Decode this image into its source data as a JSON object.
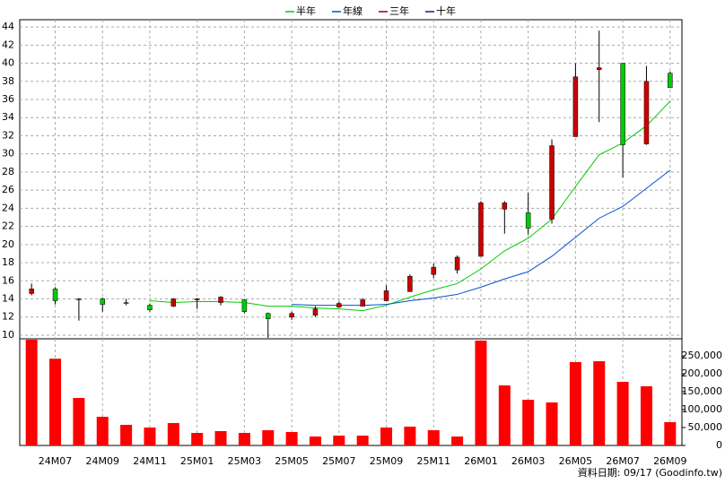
{
  "chart_data": [
    {
      "type": "candlestick",
      "open": [
        14.6,
        15.1,
        14.0,
        14.0,
        13.6,
        13.3,
        13.2,
        13.9,
        13.6,
        13.9,
        12.4,
        12.0,
        12.2,
        13.1,
        13.2,
        13.8,
        14.8,
        16.7,
        17.2,
        18.7,
        23.9,
        23.5,
        22.8,
        31.9,
        39.3,
        40.0,
        31.1,
        38.9
      ],
      "high": [
        15.7,
        15.3,
        14.1,
        14.15,
        14.0,
        13.5,
        14.1,
        14.1,
        14.3,
        14.0,
        12.5,
        12.6,
        13.2,
        13.7,
        14.1,
        15.5,
        16.7,
        17.9,
        18.8,
        24.8,
        24.8,
        25.7,
        31.6,
        40.0,
        43.6,
        40.0,
        39.7,
        39.1
      ],
      "low": [
        14.4,
        13.4,
        11.6,
        12.6,
        13.3,
        12.6,
        13.1,
        12.9,
        13.3,
        12.4,
        9.7,
        11.7,
        12.0,
        13.0,
        13.2,
        13.8,
        14.8,
        16.3,
        16.8,
        18.7,
        21.2,
        21.1,
        22.3,
        31.9,
        33.5,
        27.4,
        31.0,
        37.3
      ],
      "close": [
        15.1,
        13.8,
        13.9,
        13.4,
        13.5,
        12.8,
        14.0,
        14.0,
        14.2,
        12.6,
        11.8,
        12.4,
        12.9,
        13.5,
        13.9,
        14.9,
        16.5,
        17.5,
        18.6,
        24.6,
        24.6,
        21.8,
        30.9,
        38.5,
        39.5,
        31.0,
        38.0,
        37.3
      ],
      "up_color": "#cc0000",
      "down_color": "#00cc00",
      "series": [
        {
          "name": "半年",
          "color": "#00cc00",
          "values": [
            null,
            null,
            null,
            null,
            null,
            13.8,
            13.6,
            13.7,
            13.7,
            13.6,
            13.2,
            13.2,
            13.0,
            12.9,
            12.7,
            13.3,
            14.2,
            15.0,
            15.7,
            17.3,
            19.3,
            20.7,
            22.8,
            26.4,
            29.9,
            31.2,
            33.1,
            35.8
          ]
        },
        {
          "name": "年線",
          "color": "#0050d0",
          "values": [
            null,
            null,
            null,
            null,
            null,
            null,
            null,
            null,
            null,
            null,
            null,
            13.4,
            13.3,
            13.3,
            13.3,
            13.4,
            13.8,
            14.1,
            14.5,
            15.3,
            16.2,
            17.0,
            18.7,
            20.8,
            22.9,
            24.2,
            26.2,
            28.2
          ]
        },
        {
          "name": "三年",
          "color": "#990000",
          "values": [
            null,
            null,
            null,
            null,
            null,
            null,
            null,
            null,
            null,
            null,
            null,
            null,
            null,
            null,
            null,
            null,
            null,
            null,
            null,
            null,
            null,
            null,
            null,
            null,
            null,
            null,
            null,
            null
          ]
        },
        {
          "name": "十年",
          "color": "#4000a0",
          "values": [
            null,
            null,
            null,
            null,
            null,
            null,
            null,
            null,
            null,
            null,
            null,
            null,
            null,
            null,
            null,
            null,
            null,
            null,
            null,
            null,
            null,
            null,
            null,
            null,
            null,
            null,
            null,
            null
          ]
        }
      ],
      "ylim": [
        9.6,
        44.8
      ],
      "yticks": [
        10,
        12,
        14,
        16,
        18,
        20,
        22,
        24,
        26,
        28,
        30,
        32,
        34,
        36,
        38,
        40,
        42,
        44
      ],
      "grid": true
    },
    {
      "type": "bar",
      "categories": [
        null,
        "24M07",
        null,
        "24M09",
        null,
        "24M11",
        null,
        "25M01",
        null,
        "25M03",
        null,
        "25M05",
        null,
        "25M07",
        null,
        "25M09",
        null,
        "25M11",
        null,
        "26M01",
        null,
        "26M03",
        null,
        "26M05",
        null,
        "26M07",
        null,
        "26M09"
      ],
      "values": [
        295000,
        242000,
        132500,
        80000,
        57500,
        50000,
        62500,
        35000,
        40000,
        35000,
        42500,
        37500,
        25000,
        27500,
        27500,
        50000,
        52500,
        42500,
        25000,
        292500,
        167500,
        127500,
        120000,
        232500,
        235000,
        177500,
        165000,
        65000
      ],
      "color": "#ff0000",
      "ylim": [
        0,
        297500
      ],
      "yticks": [
        0,
        {
          "value": 50000,
          "label": "50,000"
        },
        {
          "value": 100000,
          "label": "100,000"
        },
        {
          "value": 150000,
          "label": "150,000"
        },
        {
          "value": 200000,
          "label": "200,000"
        },
        {
          "value": 250000,
          "label": "250,000"
        }
      ],
      "grid": true
    }
  ],
  "footer": "資料日期: 09/17 (Goodinfo.tw)"
}
